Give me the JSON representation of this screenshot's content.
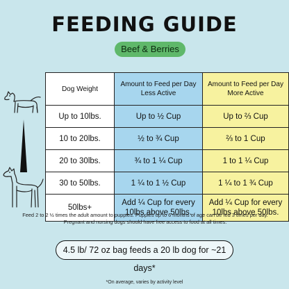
{
  "title": "FEEDING GUIDE",
  "flavor": "Beef & Berries",
  "table": {
    "headers": {
      "weight": "Dog Weight",
      "less_active": "Amount to Feed per Day Less Active",
      "more_active": "Amount to Feed per Day More Active"
    },
    "rows": [
      {
        "weight": "Up to 10lbs.",
        "less": "Up to ½ Cup",
        "more": "Up to ⅔ Cup"
      },
      {
        "weight": "10 to 20lbs.",
        "less": "½ to ¾ Cup",
        "more": "⅔ to 1 Cup"
      },
      {
        "weight": "20 to 30lbs.",
        "less": "¾ to 1 ¼ Cup",
        "more": "1 to 1 ¼ Cup"
      },
      {
        "weight": "30 to 50lbs.",
        "less": "1 ¼ to 1 ½ Cup",
        "more": "1 ¼ to 1 ¾ Cup"
      },
      {
        "weight": "50lbs+",
        "less": "Add ¼ Cup for every 10lbs above 50lbs.",
        "more": "Add ¼ Cup for every 10lbs above 50lbs."
      }
    ]
  },
  "note": "Feed 2 to 2 ½ times the adult amount to puppies. Puppies up to 6 months of age can be fed 3 times per day. Pregnant and nursing dogs should have free access to food at all times.",
  "bag_info": "4.5 lb/ 72 oz bag feeds a 20 lb dog for ~21 days*",
  "footnote": "*On average, varies by activity level",
  "icons": {
    "small_dog": "small-dog-icon",
    "large_dog": "large-dog-icon",
    "size_scale": "size-wedge-icon"
  },
  "colors": {
    "background": "#c9e6ec",
    "badge": "#5fb86a",
    "less_active_column": "#a7d6ee",
    "more_active_column": "#f7f29f"
  }
}
